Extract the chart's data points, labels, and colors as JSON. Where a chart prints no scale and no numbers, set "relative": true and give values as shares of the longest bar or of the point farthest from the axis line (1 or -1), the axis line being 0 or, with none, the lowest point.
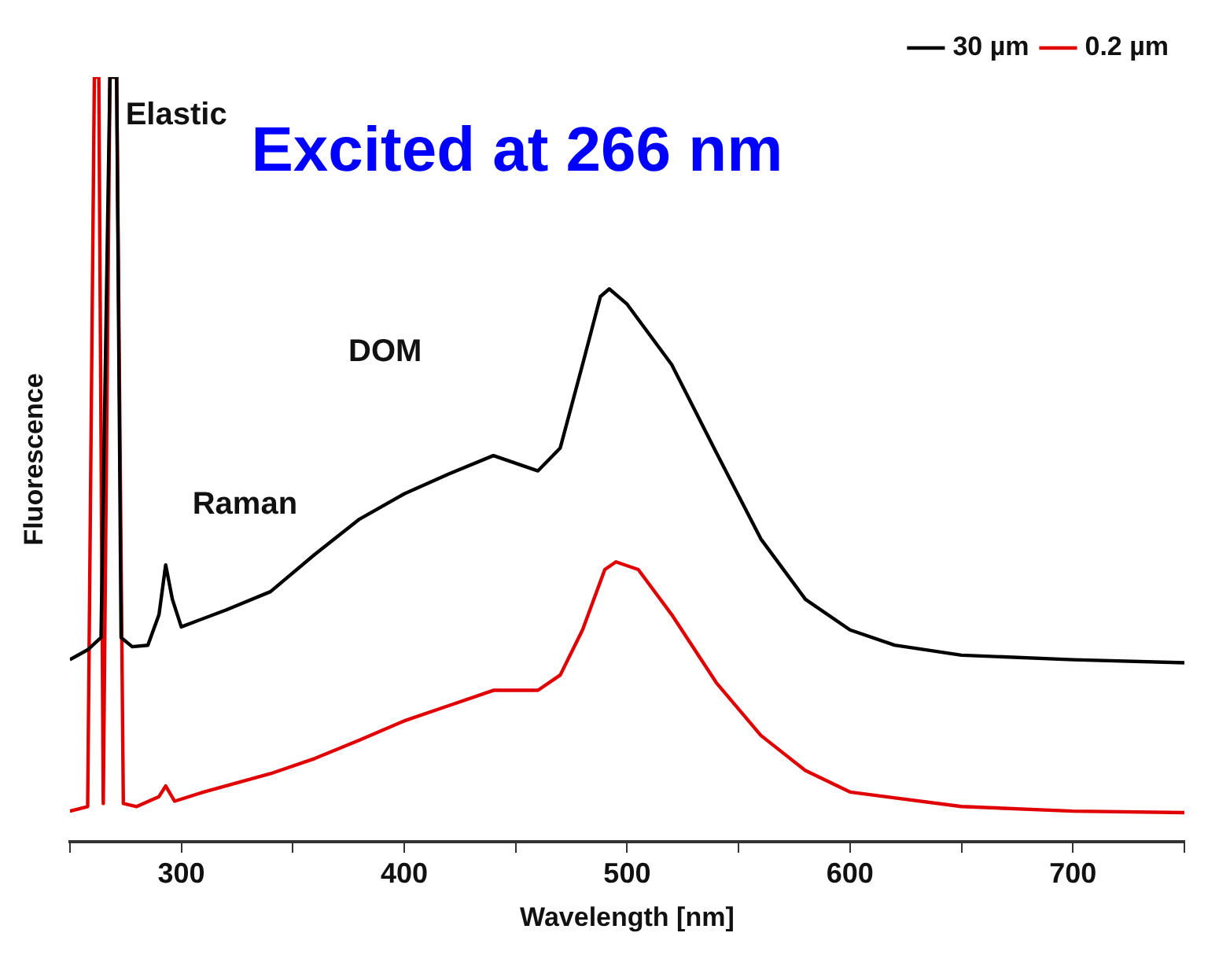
{
  "chart_data": {
    "type": "line",
    "xlabel": "Wavelength [nm]",
    "ylabel": "Fluorescence",
    "relative": true,
    "legend": "top right",
    "xlim": [
      250,
      750
    ],
    "xticks": [
      {
        "value": 250,
        "label": null
      },
      300,
      {
        "value": 350,
        "label": null
      },
      400,
      {
        "value": 450,
        "label": null
      },
      500,
      {
        "value": 550,
        "label": null
      },
      600,
      {
        "value": 650,
        "label": null
      },
      700,
      {
        "value": 750,
        "label": null
      }
    ],
    "x": [
      250,
      258,
      264,
      268,
      271,
      273,
      278,
      285,
      290,
      293,
      296,
      300,
      320,
      340,
      360,
      380,
      400,
      420,
      440,
      450,
      460,
      470,
      480,
      488,
      492,
      500,
      520,
      540,
      560,
      580,
      600,
      620,
      650,
      700,
      750
    ],
    "series": [
      {
        "name": "30 µm",
        "color": "#000000",
        "values": [
          0.238,
          0.251,
          0.267,
          1.0,
          1.0,
          0.267,
          0.255,
          0.257,
          0.297,
          0.362,
          0.317,
          0.281,
          0.303,
          0.327,
          0.376,
          0.422,
          0.455,
          0.481,
          0.505,
          0.495,
          0.485,
          0.515,
          0.624,
          0.713,
          0.723,
          0.703,
          0.624,
          0.509,
          0.396,
          0.317,
          0.277,
          0.257,
          0.244,
          0.238,
          0.234
        ]
      },
      {
        "name": "0.2 µm",
        "color": "#e00000",
        "x": [
          250,
          258,
          261,
          263,
          265,
          268,
          271,
          274,
          280,
          290,
          293,
          297,
          310,
          340,
          360,
          380,
          400,
          420,
          440,
          460,
          470,
          480,
          490,
          495,
          505,
          520,
          540,
          560,
          580,
          600,
          650,
          700,
          750
        ],
        "values": [
          0.04,
          0.046,
          1.0,
          1.0,
          0.05,
          1.0,
          1.0,
          0.05,
          0.046,
          0.059,
          0.073,
          0.053,
          0.065,
          0.089,
          0.109,
          0.133,
          0.158,
          0.178,
          0.198,
          0.198,
          0.218,
          0.277,
          0.356,
          0.366,
          0.356,
          0.297,
          0.208,
          0.139,
          0.093,
          0.065,
          0.046,
          0.04,
          0.038
        ]
      }
    ],
    "annotations": [
      "Elastic",
      "Raman",
      "DOM",
      "Excited at 266 nm"
    ]
  }
}
